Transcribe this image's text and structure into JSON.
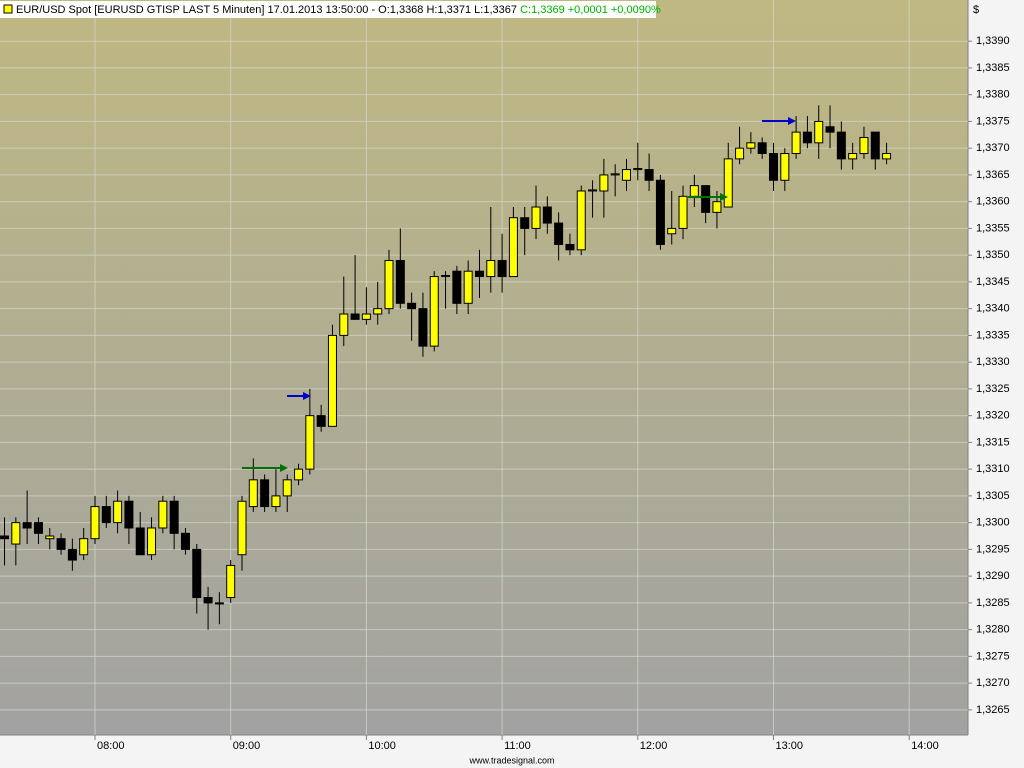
{
  "chart_data": {
    "type": "candlestick",
    "title": "EUR/USD Spot [EURUSD GTISP LAST 5 Minuten] 17.01.2013 13:50:00 - O:1,3368 H:1,3371 L:1,3367",
    "title_change": "C:1,3369 +0,0001 +0,0090%",
    "y_axis_label": "$",
    "source": "www.tradesignal.com",
    "up_color": "#ffff00",
    "down_color": "#000000",
    "change_color": "#00b000",
    "grid": true,
    "x": [
      "07:20",
      "07:25",
      "07:30",
      "07:35",
      "07:40",
      "07:45",
      "07:50",
      "07:55",
      "08:00",
      "08:05",
      "08:10",
      "08:15",
      "08:20",
      "08:25",
      "08:30",
      "08:35",
      "08:40",
      "08:45",
      "08:50",
      "08:55",
      "09:00",
      "09:05",
      "09:10",
      "09:15",
      "09:20",
      "09:25",
      "09:30",
      "09:35",
      "09:40",
      "09:45",
      "09:50",
      "09:55",
      "10:00",
      "10:05",
      "10:10",
      "10:15",
      "10:20",
      "10:25",
      "10:30",
      "10:35",
      "10:40",
      "10:45",
      "10:50",
      "10:55",
      "11:00",
      "11:05",
      "11:10",
      "11:15",
      "11:20",
      "11:25",
      "11:30",
      "11:35",
      "11:40",
      "11:45",
      "11:50",
      "11:55",
      "12:00",
      "12:05",
      "12:10",
      "12:15",
      "12:20",
      "12:25",
      "12:30",
      "12:35",
      "12:40",
      "12:45",
      "12:50",
      "12:55",
      "13:00",
      "13:05",
      "13:10",
      "13:15",
      "13:20",
      "13:25",
      "13:30",
      "13:35",
      "13:40",
      "13:45",
      "13:50"
    ],
    "open": [
      1.32975,
      1.3296,
      1.33,
      1.33,
      1.3297,
      1.3297,
      1.3295,
      1.3294,
      1.3297,
      1.3303,
      1.33,
      1.3304,
      1.3299,
      1.3294,
      1.3299,
      1.3304,
      1.3298,
      1.3295,
      1.3286,
      1.3285,
      1.3286,
      1.3294,
      1.3303,
      1.3308,
      1.3303,
      1.3305,
      1.3308,
      1.331,
      1.332,
      1.3318,
      1.3335,
      1.3339,
      1.3338,
      1.3339,
      1.334,
      1.3349,
      1.3341,
      1.334,
      1.3333,
      1.3346,
      1.3347,
      1.3341,
      1.3347,
      1.3346,
      1.3349,
      1.3346,
      1.3357,
      1.3355,
      1.3359,
      1.3356,
      1.3352,
      1.3351,
      1.3362,
      1.3362,
      1.3365,
      1.3364,
      1.3366,
      1.3366,
      1.3364,
      1.3354,
      1.3355,
      1.3361,
      1.3363,
      1.3358,
      1.3359,
      1.3368,
      1.337,
      1.3371,
      1.3369,
      1.3364,
      1.3369,
      1.3373,
      1.3371,
      1.3374,
      1.3373,
      1.3368,
      1.3369,
      1.3373,
      1.3368
    ],
    "high": [
      1.3301,
      1.3301,
      1.3306,
      1.3301,
      1.3299,
      1.3298,
      1.3297,
      1.3299,
      1.3305,
      1.3305,
      1.3306,
      1.3305,
      1.3302,
      1.3301,
      1.3305,
      1.3305,
      1.3299,
      1.3296,
      1.3288,
      1.3287,
      1.3293,
      1.3305,
      1.3312,
      1.3309,
      1.331,
      1.3309,
      1.3311,
      1.3325,
      1.3322,
      1.3337,
      1.3346,
      1.335,
      1.3344,
      1.3345,
      1.3351,
      1.3355,
      1.3343,
      1.3343,
      1.3347,
      1.3347,
      1.3348,
      1.3349,
      1.3351,
      1.3359,
      1.3354,
      1.3359,
      1.3359,
      1.3363,
      1.3361,
      1.3358,
      1.3354,
      1.3363,
      1.3364,
      1.3368,
      1.3367,
      1.3368,
      1.3371,
      1.3369,
      1.3365,
      1.3362,
      1.3363,
      1.3365,
      1.3363,
      1.3362,
      1.3371,
      1.3374,
      1.3373,
      1.3372,
      1.3371,
      1.337,
      1.3376,
      1.3376,
      1.3378,
      1.3378,
      1.3375,
      1.3371,
      1.3374,
      1.3373,
      1.3371
    ],
    "low": [
      1.3292,
      1.3292,
      1.3296,
      1.3296,
      1.3295,
      1.3294,
      1.3291,
      1.3293,
      1.3296,
      1.3299,
      1.3298,
      1.3296,
      1.3294,
      1.3293,
      1.3298,
      1.3295,
      1.3294,
      1.3283,
      1.328,
      1.3281,
      1.3285,
      1.3291,
      1.3302,
      1.3302,
      1.3302,
      1.3302,
      1.3307,
      1.3309,
      1.3317,
      1.3318,
      1.3333,
      1.3338,
      1.3337,
      1.3337,
      1.3339,
      1.334,
      1.3334,
      1.3331,
      1.3332,
      1.334,
      1.3339,
      1.3339,
      1.3342,
      1.3343,
      1.3343,
      1.3346,
      1.335,
      1.3353,
      1.3354,
      1.3349,
      1.335,
      1.335,
      1.3357,
      1.3357,
      1.3361,
      1.3362,
      1.3364,
      1.3362,
      1.3351,
      1.3352,
      1.3353,
      1.3359,
      1.3356,
      1.3355,
      1.3359,
      1.3367,
      1.3369,
      1.3368,
      1.3362,
      1.3362,
      1.3368,
      1.337,
      1.3368,
      1.337,
      1.3366,
      1.3366,
      1.3368,
      1.3366,
      1.3367
    ],
    "close": [
      1.3297,
      1.33,
      1.3299,
      1.3298,
      1.32975,
      1.3295,
      1.3293,
      1.3297,
      1.3303,
      1.33,
      1.3304,
      1.3299,
      1.3294,
      1.3299,
      1.3304,
      1.3298,
      1.3295,
      1.3286,
      1.3285,
      1.32848,
      1.3292,
      1.3304,
      1.3308,
      1.3303,
      1.3305,
      1.3308,
      1.331,
      1.332,
      1.3318,
      1.3335,
      1.3339,
      1.3338,
      1.3339,
      1.334,
      1.3349,
      1.3341,
      1.334,
      1.3333,
      1.3346,
      1.33462,
      1.3341,
      1.3347,
      1.3346,
      1.3349,
      1.3346,
      1.3357,
      1.3355,
      1.3359,
      1.3356,
      1.3352,
      1.3351,
      1.3362,
      1.33622,
      1.3365,
      1.33652,
      1.3366,
      1.33662,
      1.3364,
      1.3352,
      1.3355,
      1.3361,
      1.3363,
      1.3358,
      1.336,
      1.3368,
      1.337,
      1.3371,
      1.3369,
      1.3364,
      1.3369,
      1.3373,
      1.3371,
      1.3375,
      1.3373,
      1.3368,
      1.3369,
      1.3372,
      1.3368,
      1.3369
    ],
    "xlim": [
      "07:18",
      "14:26"
    ],
    "xticks": [
      "08:00",
      "09:00",
      "10:00",
      "11:00",
      "12:00",
      "13:00",
      "14:00"
    ],
    "ylim": [
      1.32603,
      1.33977
    ],
    "yticks": [
      {
        "value": 1.3265,
        "label": "1,3265"
      },
      {
        "value": 1.327,
        "label": "1,3270"
      },
      {
        "value": 1.3275,
        "label": "1,3275"
      },
      {
        "value": 1.328,
        "label": "1,3280"
      },
      {
        "value": 1.3285,
        "label": "1,3285"
      },
      {
        "value": 1.329,
        "label": "1,3290"
      },
      {
        "value": 1.3295,
        "label": "1,3295"
      },
      {
        "value": 1.33,
        "label": "1,3300"
      },
      {
        "value": 1.3305,
        "label": "1,3305"
      },
      {
        "value": 1.331,
        "label": "1,3310"
      },
      {
        "value": 1.3315,
        "label": "1,3315"
      },
      {
        "value": 1.332,
        "label": "1,3320"
      },
      {
        "value": 1.3325,
        "label": "1,3325"
      },
      {
        "value": 1.333,
        "label": "1,3330"
      },
      {
        "value": 1.3335,
        "label": "1,3335"
      },
      {
        "value": 1.334,
        "label": "1,3340"
      },
      {
        "value": 1.3345,
        "label": "1,3345"
      },
      {
        "value": 1.335,
        "label": "1,3350"
      },
      {
        "value": 1.3355,
        "label": "1,3355"
      },
      {
        "value": 1.336,
        "label": "1,3360"
      },
      {
        "value": 1.3365,
        "label": "1,3365"
      },
      {
        "value": 1.337,
        "label": "1,3370"
      },
      {
        "value": 1.3375,
        "label": "1,3375"
      },
      {
        "value": 1.338,
        "label": "1,3380"
      },
      {
        "value": 1.3385,
        "label": "1,3385"
      },
      {
        "value": 1.339,
        "label": "1,3390"
      }
    ]
  }
}
